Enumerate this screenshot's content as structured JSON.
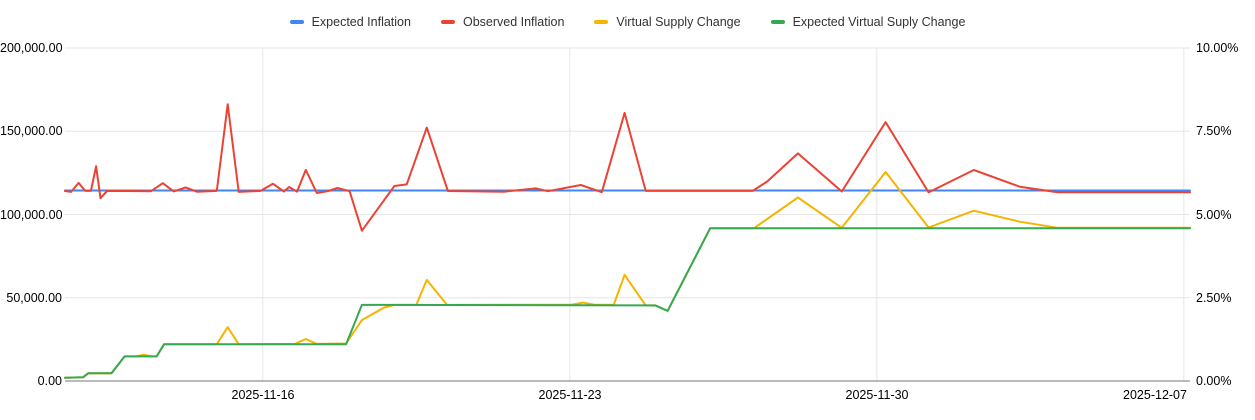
{
  "legend": {
    "items": [
      {
        "label": "Expected Inflation",
        "color": "#4285f4"
      },
      {
        "label": "Observed Inflation",
        "color": "#ea4335"
      },
      {
        "label": "Virtual Supply Change",
        "color": "#f4b400"
      },
      {
        "label": "Expected Virtual Suply Change",
        "color": "#34a853"
      }
    ]
  },
  "chart_data": {
    "type": "line",
    "title": "",
    "legend_position": "top",
    "grid": true,
    "x_axis": {
      "tick_labels": [
        "2025-11-16",
        "2025-11-23",
        "2025-11-30",
        "2025-12-07"
      ],
      "tick_days": [
        5,
        12,
        19,
        26
      ],
      "domain_days": [
        0.49,
        26.14
      ],
      "day_zero": "2025-11-11"
    },
    "left_axis": {
      "ticks": [
        "200,000.00",
        "150,000.00",
        "100,000.00",
        "50,000.00",
        "0.00"
      ],
      "range": [
        0,
        200000
      ],
      "grid_values": [
        0,
        50000,
        100000,
        150000,
        200000
      ]
    },
    "right_axis": {
      "ticks": [
        "10.00%",
        "7.50%",
        "5.00%",
        "2.50%",
        "0.00%"
      ],
      "range": [
        0,
        10
      ]
    },
    "colors": {
      "grid": "#e6e6e6",
      "baseline": "#757575",
      "background": "#ffffff"
    },
    "series": [
      {
        "name": "Expected Inflation",
        "color": "#4285f4",
        "points": [
          [
            0.49,
            114400
          ],
          [
            26.14,
            114400
          ]
        ]
      },
      {
        "name": "Observed Inflation",
        "color": "#ea4335",
        "points": [
          [
            0.49,
            114100
          ],
          [
            0.63,
            113600
          ],
          [
            0.8,
            119000
          ],
          [
            0.95,
            114200
          ],
          [
            1.08,
            114200
          ],
          [
            1.2,
            129000
          ],
          [
            1.3,
            109800
          ],
          [
            1.45,
            114200
          ],
          [
            2.45,
            114000
          ],
          [
            2.72,
            118800
          ],
          [
            2.97,
            113900
          ],
          [
            3.24,
            116300
          ],
          [
            3.5,
            113700
          ],
          [
            3.95,
            114200
          ],
          [
            4.2,
            166200
          ],
          [
            4.45,
            113600
          ],
          [
            4.95,
            114200
          ],
          [
            5.23,
            118500
          ],
          [
            5.48,
            113800
          ],
          [
            5.6,
            116500
          ],
          [
            5.78,
            113700
          ],
          [
            5.98,
            126800
          ],
          [
            6.23,
            112900
          ],
          [
            6.48,
            114000
          ],
          [
            6.7,
            115900
          ],
          [
            6.98,
            114000
          ],
          [
            7.26,
            90300
          ],
          [
            8.0,
            117100
          ],
          [
            8.28,
            118100
          ],
          [
            8.74,
            152200
          ],
          [
            9.22,
            114100
          ],
          [
            10.5,
            113700
          ],
          [
            11.22,
            115700
          ],
          [
            11.5,
            114000
          ],
          [
            12.25,
            117700
          ],
          [
            12.73,
            113400
          ],
          [
            13.25,
            161000
          ],
          [
            13.73,
            114200
          ],
          [
            16.17,
            114200
          ],
          [
            16.5,
            119800
          ],
          [
            17.2,
            136700
          ],
          [
            18.2,
            113800
          ],
          [
            19.2,
            155500
          ],
          [
            20.18,
            113300
          ],
          [
            21.21,
            126700
          ],
          [
            22.26,
            116700
          ],
          [
            23.12,
            113400
          ],
          [
            26.14,
            113400
          ]
        ]
      },
      {
        "name": "Virtual Supply Change",
        "color": "#f4b400",
        "points": [
          [
            0.49,
            2000
          ],
          [
            0.9,
            2200
          ],
          [
            1.02,
            4600
          ],
          [
            1.55,
            4600
          ],
          [
            1.85,
            14800
          ],
          [
            2.12,
            14800
          ],
          [
            2.28,
            15800
          ],
          [
            2.45,
            14800
          ],
          [
            2.58,
            14900
          ],
          [
            2.75,
            22100
          ],
          [
            3.95,
            22100
          ],
          [
            4.2,
            32300
          ],
          [
            4.45,
            22100
          ],
          [
            5.73,
            22300
          ],
          [
            5.98,
            25200
          ],
          [
            6.23,
            22300
          ],
          [
            6.9,
            22500
          ],
          [
            7.26,
            36600
          ],
          [
            7.76,
            44100
          ],
          [
            8.0,
            45700
          ],
          [
            8.5,
            45700
          ],
          [
            8.74,
            60700
          ],
          [
            9.2,
            45700
          ],
          [
            12.05,
            45900
          ],
          [
            12.3,
            47100
          ],
          [
            12.55,
            45900
          ],
          [
            13.0,
            45700
          ],
          [
            13.25,
            63800
          ],
          [
            13.73,
            45400
          ],
          [
            13.95,
            45300
          ],
          [
            14.23,
            42100
          ],
          [
            15.2,
            91800
          ],
          [
            16.2,
            91800
          ],
          [
            17.2,
            110200
          ],
          [
            18.2,
            92000
          ],
          [
            19.2,
            125500
          ],
          [
            20.18,
            92200
          ],
          [
            21.21,
            102300
          ],
          [
            22.26,
            95700
          ],
          [
            23.12,
            92000
          ],
          [
            26.14,
            92000
          ]
        ]
      },
      {
        "name": "Expected Virtual Suply Change",
        "color": "#34a853",
        "points": [
          [
            0.49,
            2000
          ],
          [
            0.9,
            2200
          ],
          [
            1.02,
            4600
          ],
          [
            1.55,
            4600
          ],
          [
            1.85,
            14800
          ],
          [
            2.58,
            14800
          ],
          [
            2.75,
            22100
          ],
          [
            6.9,
            22100
          ],
          [
            7.26,
            45700
          ],
          [
            13.95,
            45400
          ],
          [
            14.23,
            42100
          ],
          [
            15.2,
            91800
          ],
          [
            26.14,
            91800
          ]
        ]
      }
    ]
  }
}
